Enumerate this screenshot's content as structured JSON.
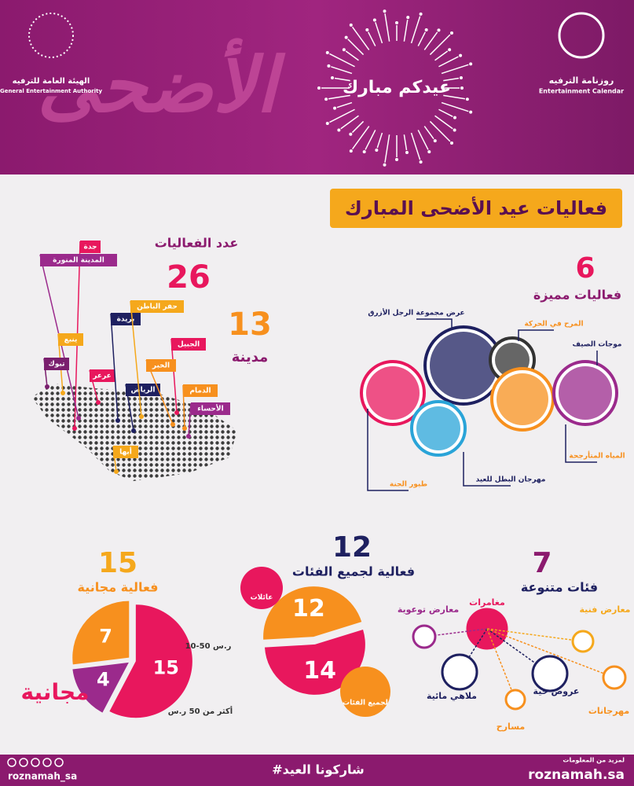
{
  "header": {
    "authority_ar": "الهيئة العامة للترفيه",
    "authority_en": "General Entertainment Authority",
    "calendar_ar": "روزنامة الترفيه",
    "calendar_en": "Entertainment Calendar",
    "greeting": "عيدكم مبارك",
    "calligraphy": "الأضحى"
  },
  "title": "فعاليات عيد الأضحى المبارك",
  "map": {
    "heading": "عدد الفعاليات",
    "events": 26,
    "city_count": 13,
    "city_label": "مدينة",
    "cities": [
      "جدة",
      "المدينة المنورة",
      "ينبع",
      "تبوك",
      "عرعر",
      "بريدة",
      "الرياض",
      "حفر الباطن",
      "الجبيل",
      "الخبر",
      "الدمام",
      "الأحساء",
      "أبها"
    ]
  },
  "featured": {
    "count": 6,
    "label": "فعاليات مميزة",
    "items": [
      "عرض مجموعة الرجل الأزرق",
      "المرح في الحركة",
      "موجات الصيف",
      "المياه المتأرجحة",
      "مهرجان البطل للعيد",
      "طيور الجنة"
    ]
  },
  "pricing": {
    "type": "pie",
    "count": 15,
    "label": "فعالية مجانية",
    "categories": [
      "مجانية",
      "10-50 ر.س",
      "أكثر من 50 ر.س"
    ],
    "values": [
      15,
      4,
      7
    ],
    "colors": [
      "#e8175d",
      "#9b2a8c",
      "#f7901e"
    ]
  },
  "audience": {
    "type": "pie",
    "count": 12,
    "label": "فعالية لجميع الفئات",
    "categories": [
      "عائلات",
      "لجميع الفئات"
    ],
    "values": [
      14,
      12
    ],
    "colors": [
      "#e8175d",
      "#f7901e"
    ]
  },
  "categories": {
    "count": 7,
    "label": "فئات متنوعة",
    "items": [
      "مغامرات",
      "معارض فنية",
      "معارض توعوية",
      "ملاهي مائية",
      "عروض حية",
      "مسارح",
      "مهرجانات"
    ]
  },
  "footer": {
    "handle": "roznamah_sa",
    "hashtag": "#شاركونا العيد",
    "more": "لمزيد من المعلومات",
    "site": "roznamah.sa"
  }
}
